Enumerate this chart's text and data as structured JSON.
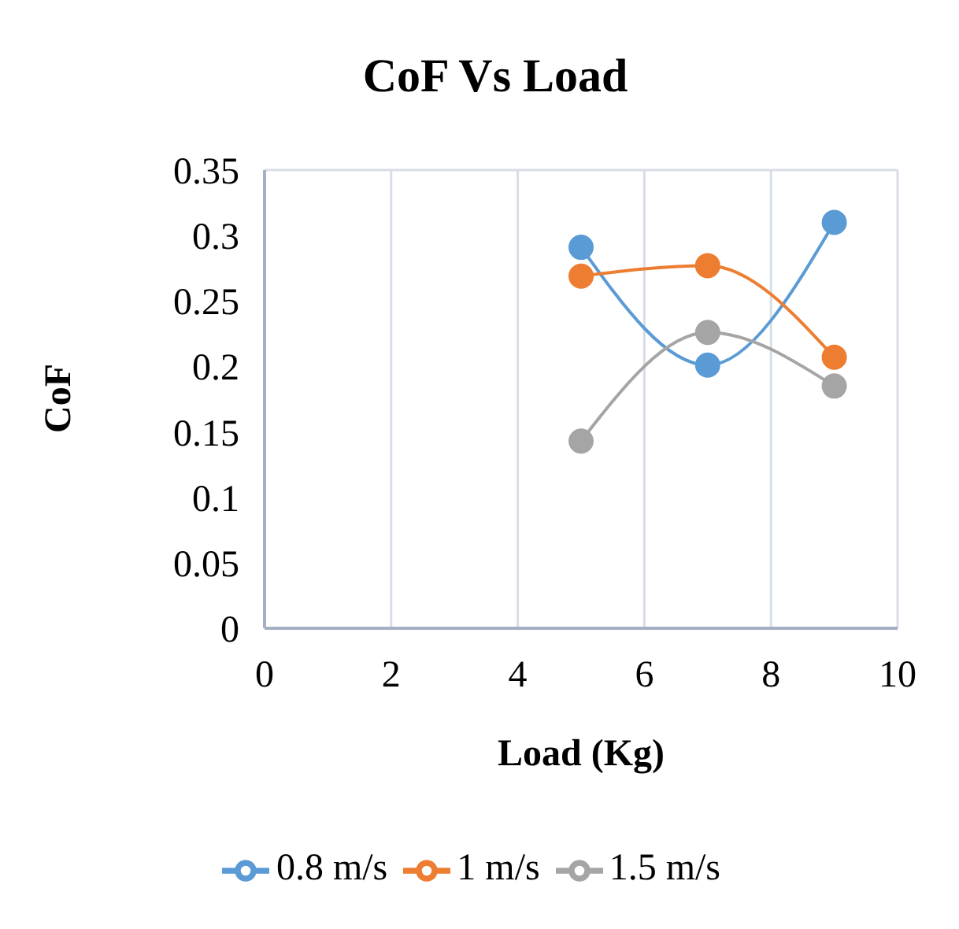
{
  "chart_data": {
    "type": "line",
    "title": "CoF Vs Load",
    "xlabel": "Load (Kg)",
    "ylabel": "CoF",
    "x": [
      5,
      7,
      9
    ],
    "series": [
      {
        "name": "0.8 m/s",
        "color": "#5b9bd5",
        "values": [
          0.291,
          0.201,
          0.31
        ]
      },
      {
        "name": "1 m/s",
        "color": "#ed7d31",
        "values": [
          0.269,
          0.277,
          0.207
        ]
      },
      {
        "name": "1.5 m/s",
        "color": "#a5a5a5",
        "values": [
          0.143,
          0.226,
          0.185
        ]
      }
    ],
    "xlim": [
      0,
      10
    ],
    "xticks": [
      0,
      2,
      4,
      6,
      8,
      10
    ],
    "ylim": [
      0,
      0.35
    ],
    "yticks": [
      0,
      0.05,
      0.1,
      0.15,
      0.2,
      0.25,
      0.3,
      0.35
    ],
    "grid": true,
    "legend": "bottom",
    "marker": "circle",
    "line_style": "solid"
  }
}
